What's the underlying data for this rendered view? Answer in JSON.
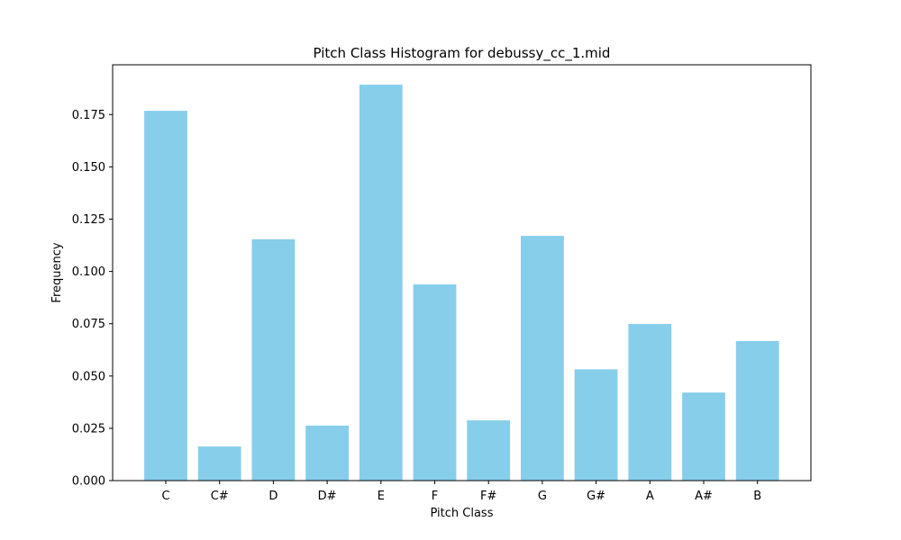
{
  "chart_data": {
    "type": "bar",
    "title": "Pitch Class Histogram for debussy_cc_1.mid",
    "xlabel": "Pitch Class",
    "ylabel": "Frequency",
    "categories": [
      "C",
      "C#",
      "D",
      "D#",
      "E",
      "F",
      "F#",
      "G",
      "G#",
      "A",
      "A#",
      "B"
    ],
    "values": [
      0.1768,
      0.0163,
      0.1154,
      0.0263,
      0.1893,
      0.0938,
      0.0288,
      0.117,
      0.0532,
      0.0749,
      0.0421,
      0.0667
    ],
    "ylim": [
      0,
      0.1988
    ],
    "yticks": [
      "0.000",
      "0.025",
      "0.050",
      "0.075",
      "0.100",
      "0.125",
      "0.150",
      "0.175"
    ],
    "ytick_values": [
      0,
      0.025,
      0.05,
      0.075,
      0.1,
      0.125,
      0.15,
      0.175
    ],
    "bar_color": "#87ceeb",
    "grid": false,
    "legend": "none"
  }
}
